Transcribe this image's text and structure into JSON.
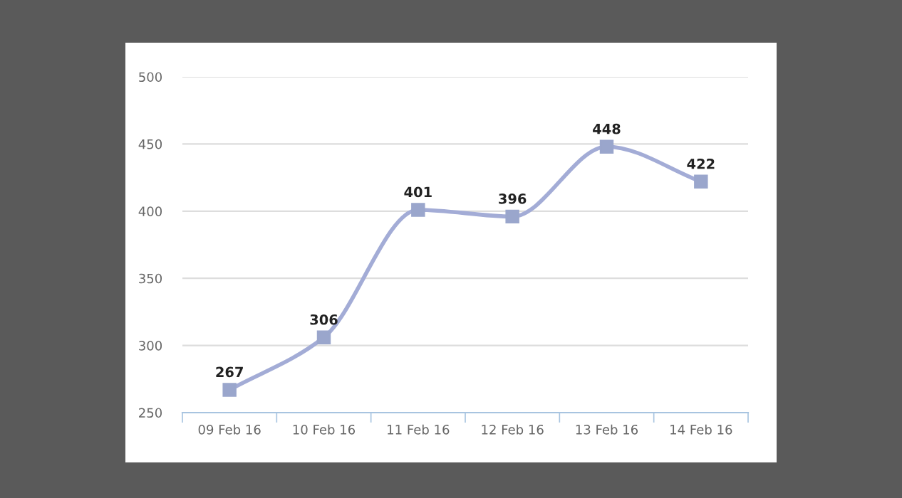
{
  "chart_data": {
    "type": "line",
    "categories": [
      "09 Feb 16",
      "10 Feb 16",
      "11 Feb 16",
      "12 Feb 16",
      "13 Feb 16",
      "14 Feb 16"
    ],
    "series": [
      {
        "color": "#a3acd6",
        "values": [
          267,
          306,
          401,
          396,
          448,
          422
        ]
      }
    ],
    "ylim": [
      250,
      500
    ],
    "yticks": [
      250,
      300,
      350,
      400,
      450,
      500
    ],
    "grid": "y",
    "marker": "square",
    "line_style": "solid",
    "data_labels": true,
    "legend": false
  }
}
